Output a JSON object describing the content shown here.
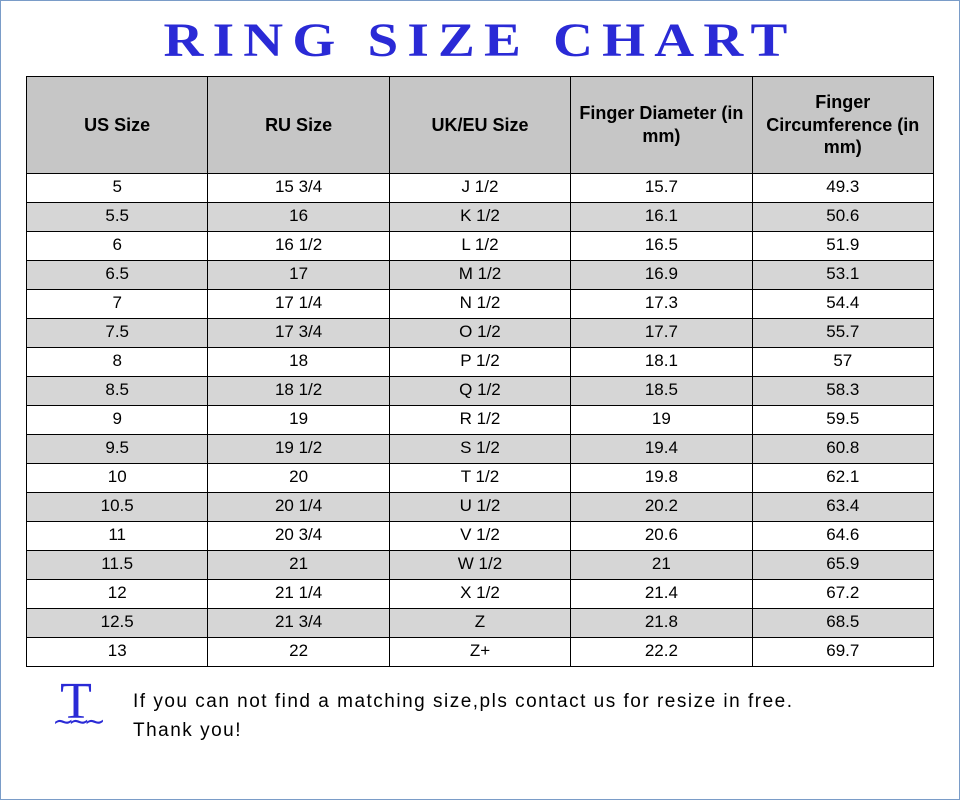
{
  "title": "RING SIZE CHART",
  "title_color": "#2a2ad6",
  "title_fontsize": 48,
  "table": {
    "header_bg": "#c6c6c6",
    "alt_row_bg": "#d6d6d6",
    "border_color": "#000000",
    "columns": [
      "US Size",
      "RU Size",
      "UK/EU Size",
      "Finger Diameter (in mm)",
      "Finger Circumference (in mm)"
    ],
    "rows": [
      [
        "5",
        "15 3/4",
        "J 1/2",
        "15.7",
        "49.3"
      ],
      [
        "5.5",
        "16",
        "K 1/2",
        "16.1",
        "50.6"
      ],
      [
        "6",
        "16 1/2",
        "L 1/2",
        "16.5",
        "51.9"
      ],
      [
        "6.5",
        "17",
        "M 1/2",
        "16.9",
        "53.1"
      ],
      [
        "7",
        "17 1/4",
        "N 1/2",
        "17.3",
        "54.4"
      ],
      [
        "7.5",
        "17 3/4",
        "O 1/2",
        "17.7",
        "55.7"
      ],
      [
        "8",
        "18",
        "P 1/2",
        "18.1",
        "57"
      ],
      [
        "8.5",
        "18 1/2",
        "Q 1/2",
        "18.5",
        "58.3"
      ],
      [
        "9",
        "19",
        "R 1/2",
        "19",
        "59.5"
      ],
      [
        "9.5",
        "19 1/2",
        "S 1/2",
        "19.4",
        "60.8"
      ],
      [
        "10",
        "20",
        "T 1/2",
        "19.8",
        "62.1"
      ],
      [
        "10.5",
        "20 1/4",
        "U 1/2",
        "20.2",
        "63.4"
      ],
      [
        "11",
        "20 3/4",
        "V 1/2",
        "20.6",
        "64.6"
      ],
      [
        "11.5",
        "21",
        "W 1/2",
        "21",
        "65.9"
      ],
      [
        "12",
        "21 1/4",
        "X 1/2",
        "21.4",
        "67.2"
      ],
      [
        "12.5",
        "21 3/4",
        "Z",
        "21.8",
        "68.5"
      ],
      [
        "13",
        "22",
        "Z+",
        "22.2",
        "69.7"
      ]
    ]
  },
  "footer": {
    "icon_letter": "T",
    "icon_color": "#2a2ad6",
    "line1": "If you can not find a matching size,pls contact us for resize in free.",
    "line2": "Thank you!"
  }
}
